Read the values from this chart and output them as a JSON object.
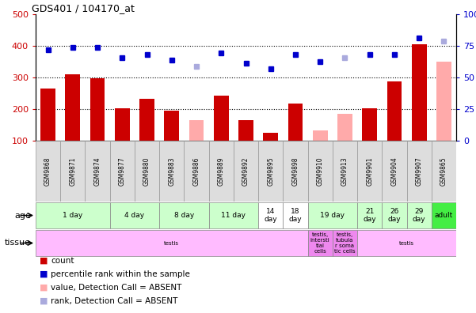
{
  "title": "GDS401 / 104170_at",
  "samples": [
    "GSM9868",
    "GSM9871",
    "GSM9874",
    "GSM9877",
    "GSM9880",
    "GSM9883",
    "GSM9886",
    "GSM9889",
    "GSM9892",
    "GSM9895",
    "GSM9898",
    "GSM9910",
    "GSM9913",
    "GSM9901",
    "GSM9904",
    "GSM9907",
    "GSM9865"
  ],
  "count_values": [
    265,
    310,
    298,
    202,
    233,
    195,
    null,
    242,
    165,
    125,
    218,
    null,
    null,
    202,
    288,
    405,
    null
  ],
  "absent_count_values": [
    null,
    null,
    null,
    null,
    null,
    null,
    165,
    null,
    null,
    null,
    null,
    133,
    185,
    null,
    null,
    null,
    350
  ],
  "rank_values": [
    388,
    396,
    394,
    363,
    373,
    355,
    null,
    378,
    344,
    328,
    373,
    350,
    null,
    373,
    373,
    425,
    null
  ],
  "absent_rank_values": [
    null,
    null,
    null,
    null,
    null,
    null,
    336,
    null,
    null,
    null,
    null,
    null,
    363,
    null,
    null,
    null,
    415
  ],
  "ylim_left": [
    100,
    500
  ],
  "ylim_right": [
    0,
    100
  ],
  "yticks_left": [
    100,
    200,
    300,
    400,
    500
  ],
  "yticks_right": [
    0,
    25,
    50,
    75,
    100
  ],
  "color_count": "#cc0000",
  "color_rank": "#0000cc",
  "color_absent_count": "#ffaaaa",
  "color_absent_rank": "#aaaadd",
  "age_groups": [
    {
      "label": "1 day",
      "start": 0,
      "end": 2,
      "color": "#ccffcc"
    },
    {
      "label": "4 day",
      "start": 3,
      "end": 4,
      "color": "#ccffcc"
    },
    {
      "label": "8 day",
      "start": 5,
      "end": 6,
      "color": "#ccffcc"
    },
    {
      "label": "11 day",
      "start": 7,
      "end": 8,
      "color": "#ccffcc"
    },
    {
      "label": "14\nday",
      "start": 9,
      "end": 9,
      "color": "#ffffff"
    },
    {
      "label": "18\nday",
      "start": 10,
      "end": 10,
      "color": "#ffffff"
    },
    {
      "label": "19 day",
      "start": 11,
      "end": 12,
      "color": "#ccffcc"
    },
    {
      "label": "21\nday",
      "start": 13,
      "end": 13,
      "color": "#ccffcc"
    },
    {
      "label": "26\nday",
      "start": 14,
      "end": 14,
      "color": "#ccffcc"
    },
    {
      "label": "29\nday",
      "start": 15,
      "end": 15,
      "color": "#ccffcc"
    },
    {
      "label": "adult",
      "start": 16,
      "end": 16,
      "color": "#44ee44"
    }
  ],
  "tissue_groups": [
    {
      "label": "testis",
      "start": 0,
      "end": 10,
      "color": "#ffbbff"
    },
    {
      "label": "testis,\nintersti\ntial\ncells",
      "start": 11,
      "end": 11,
      "color": "#ee88ee"
    },
    {
      "label": "testis,\ntubula\nr soma\ntic cells",
      "start": 12,
      "end": 12,
      "color": "#ee88ee"
    },
    {
      "label": "testis",
      "start": 13,
      "end": 16,
      "color": "#ffbbff"
    }
  ]
}
